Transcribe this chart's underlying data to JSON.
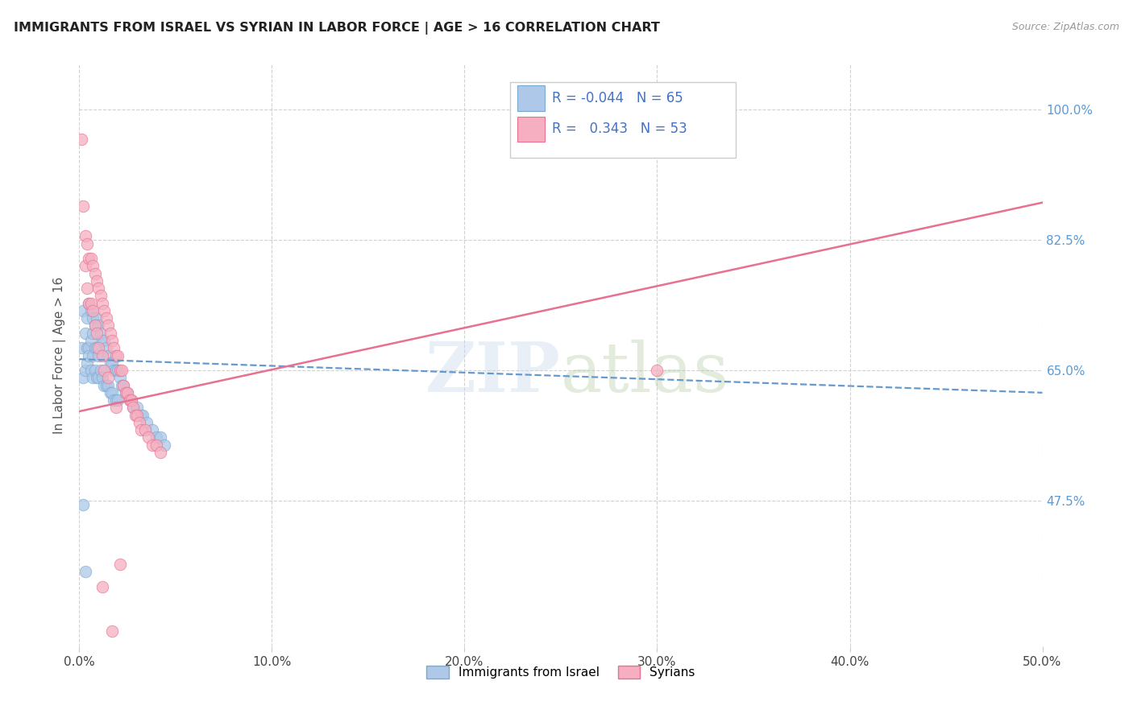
{
  "title": "IMMIGRANTS FROM ISRAEL VS SYRIAN IN LABOR FORCE | AGE > 16 CORRELATION CHART",
  "source": "Source: ZipAtlas.com",
  "ylabel": "In Labor Force | Age > 16",
  "ytick_labels": [
    "100.0%",
    "82.5%",
    "65.0%",
    "47.5%"
  ],
  "ytick_values": [
    1.0,
    0.825,
    0.65,
    0.475
  ],
  "xlim": [
    0.0,
    0.5
  ],
  "ylim": [
    0.28,
    1.06
  ],
  "watermark": "ZIPatlas",
  "legend_israel_R": "-0.044",
  "legend_israel_N": "65",
  "legend_syrian_R": "0.343",
  "legend_syrian_N": "53",
  "israel_color": "#adc8e8",
  "syrian_color": "#f5afc0",
  "israel_edge_color": "#7aaad0",
  "syrian_edge_color": "#e87090",
  "israel_line_color": "#6699cc",
  "syrian_line_color": "#e87090",
  "israel_scatter_x": [
    0.001,
    0.002,
    0.002,
    0.003,
    0.003,
    0.004,
    0.004,
    0.004,
    0.005,
    0.005,
    0.005,
    0.006,
    0.006,
    0.006,
    0.007,
    0.007,
    0.007,
    0.007,
    0.008,
    0.008,
    0.008,
    0.009,
    0.009,
    0.009,
    0.01,
    0.01,
    0.01,
    0.011,
    0.011,
    0.012,
    0.012,
    0.013,
    0.013,
    0.014,
    0.014,
    0.015,
    0.015,
    0.016,
    0.016,
    0.017,
    0.017,
    0.018,
    0.018,
    0.019,
    0.019,
    0.02,
    0.02,
    0.021,
    0.022,
    0.023,
    0.024,
    0.025,
    0.026,
    0.027,
    0.028,
    0.03,
    0.032,
    0.033,
    0.035,
    0.038,
    0.04,
    0.042,
    0.044,
    0.003,
    0.002
  ],
  "israel_scatter_y": [
    0.68,
    0.64,
    0.73,
    0.7,
    0.65,
    0.72,
    0.68,
    0.66,
    0.74,
    0.68,
    0.67,
    0.73,
    0.69,
    0.65,
    0.72,
    0.7,
    0.67,
    0.64,
    0.71,
    0.68,
    0.65,
    0.72,
    0.68,
    0.64,
    0.71,
    0.67,
    0.64,
    0.7,
    0.65,
    0.69,
    0.64,
    0.69,
    0.63,
    0.68,
    0.63,
    0.67,
    0.63,
    0.66,
    0.62,
    0.66,
    0.62,
    0.65,
    0.61,
    0.65,
    0.61,
    0.65,
    0.61,
    0.64,
    0.63,
    0.63,
    0.62,
    0.62,
    0.61,
    0.61,
    0.6,
    0.6,
    0.59,
    0.59,
    0.58,
    0.57,
    0.56,
    0.56,
    0.55,
    0.38,
    0.47
  ],
  "syrian_scatter_x": [
    0.001,
    0.002,
    0.003,
    0.003,
    0.004,
    0.004,
    0.005,
    0.005,
    0.006,
    0.006,
    0.007,
    0.007,
    0.008,
    0.008,
    0.009,
    0.009,
    0.01,
    0.01,
    0.011,
    0.012,
    0.012,
    0.013,
    0.013,
    0.014,
    0.015,
    0.015,
    0.016,
    0.017,
    0.018,
    0.019,
    0.019,
    0.02,
    0.021,
    0.022,
    0.023,
    0.024,
    0.025,
    0.026,
    0.027,
    0.028,
    0.029,
    0.03,
    0.031,
    0.032,
    0.034,
    0.036,
    0.038,
    0.04,
    0.042,
    0.3,
    0.012,
    0.017,
    0.021
  ],
  "syrian_scatter_y": [
    0.96,
    0.87,
    0.83,
    0.79,
    0.82,
    0.76,
    0.8,
    0.74,
    0.8,
    0.74,
    0.79,
    0.73,
    0.78,
    0.71,
    0.77,
    0.7,
    0.76,
    0.68,
    0.75,
    0.74,
    0.67,
    0.73,
    0.65,
    0.72,
    0.71,
    0.64,
    0.7,
    0.69,
    0.68,
    0.67,
    0.6,
    0.67,
    0.65,
    0.65,
    0.63,
    0.62,
    0.62,
    0.61,
    0.61,
    0.6,
    0.59,
    0.59,
    0.58,
    0.57,
    0.57,
    0.56,
    0.55,
    0.55,
    0.54,
    0.65,
    0.36,
    0.3,
    0.39
  ],
  "background_color": "#ffffff",
  "grid_color": "#cccccc",
  "israel_trend_x": [
    0.0,
    0.5
  ],
  "israel_trend_y": [
    0.665,
    0.62
  ],
  "syrian_trend_x": [
    0.0,
    0.5
  ],
  "syrian_trend_y": [
    0.595,
    0.875
  ]
}
